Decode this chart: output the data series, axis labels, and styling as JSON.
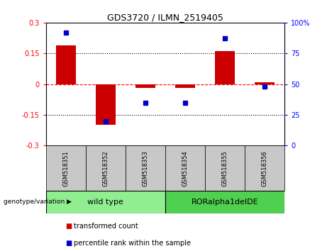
{
  "title": "GDS3720 / ILMN_2519405",
  "samples": [
    "GSM518351",
    "GSM518352",
    "GSM518353",
    "GSM518354",
    "GSM518355",
    "GSM518356"
  ],
  "red_bars": [
    0.19,
    -0.2,
    -0.02,
    -0.02,
    0.16,
    0.01
  ],
  "blue_dots": [
    92,
    20,
    35,
    35,
    87,
    48
  ],
  "groups": [
    {
      "label": "wild type",
      "indices": [
        0,
        1,
        2
      ],
      "color": "#90EE90"
    },
    {
      "label": "RORalpha1delDE",
      "indices": [
        3,
        4,
        5
      ],
      "color": "#50D050"
    }
  ],
  "ylim_left": [
    -0.3,
    0.3
  ],
  "ylim_right": [
    0,
    100
  ],
  "yticks_left": [
    -0.3,
    -0.15,
    0,
    0.15,
    0.3
  ],
  "yticks_right": [
    0,
    25,
    50,
    75,
    100
  ],
  "ytick_labels_left": [
    "-0.3",
    "-0.15",
    "0",
    "0.15",
    "0.3"
  ],
  "ytick_labels_right": [
    "0",
    "25",
    "50",
    "75",
    "100%"
  ],
  "hlines": [
    0.15,
    0.0,
    -0.15
  ],
  "hline_styles": [
    "dotted",
    "dashed",
    "dotted"
  ],
  "hline_colors": [
    "black",
    "red",
    "black"
  ],
  "bar_color": "#CC0000",
  "dot_color": "#0000CC",
  "group_label": "genotype/variation",
  "legend_items": [
    {
      "color": "#CC0000",
      "label": "transformed count"
    },
    {
      "color": "#0000CC",
      "label": "percentile rank within the sample"
    }
  ],
  "sample_box_color": "#C8C8C8",
  "bar_width": 0.5,
  "xlim": [
    -0.5,
    5.5
  ]
}
